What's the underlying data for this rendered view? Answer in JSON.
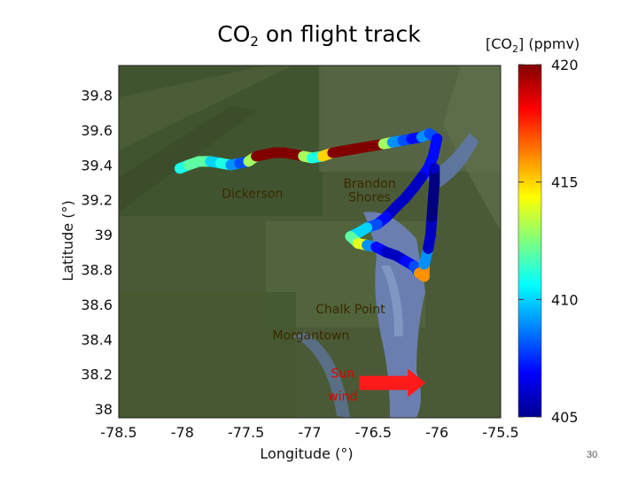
{
  "chart_data": {
    "type": "scatter",
    "title_main": "CO",
    "title_sub": "2",
    "title_rest": " on flight track",
    "xlabel": "Longitude (°)",
    "ylabel": "Latitude (°)",
    "xlim": [
      -78.5,
      -75.5
    ],
    "ylim": [
      37.95,
      39.97
    ],
    "xticks": [
      "-78.5",
      "-78",
      "-77.5",
      "-77",
      "-76.5",
      "-76",
      "-75.5"
    ],
    "yticks": [
      "39.8",
      "39.6",
      "39.4",
      "39.2",
      "39",
      "38.8",
      "38.6",
      "38.4",
      "38.2",
      "38"
    ],
    "colorbar": {
      "label_pre": "[CO",
      "label_sub": "2",
      "label_post": "]  (ppmv)",
      "range": [
        405,
        420
      ],
      "ticks": [
        "420",
        "415",
        "410",
        "405"
      ]
    },
    "annotations": [
      {
        "label": "Dickerson",
        "lon": -77.45,
        "lat": 39.21,
        "color": "#3a2a00"
      },
      {
        "label": "Brandon",
        "lon": -76.53,
        "lat": 39.27,
        "color": "#3a2a00"
      },
      {
        "label": "Shores",
        "lon": -76.53,
        "lat": 39.19,
        "color": "#3a2a00"
      },
      {
        "label": "Chalk Point",
        "lon": -76.68,
        "lat": 38.55,
        "color": "#3a2a00"
      },
      {
        "label": "Morgantown",
        "lon": -76.99,
        "lat": 38.4,
        "color": "#3a2a00"
      },
      {
        "label": "Sun",
        "lon": -76.74,
        "lat": 38.18,
        "color": "#e00000"
      },
      {
        "label": "wind",
        "lon": -76.74,
        "lat": 38.05,
        "color": "#e00000"
      }
    ],
    "wind_arrow": {
      "lon_start": -76.61,
      "lon_end": -76.09,
      "lat": 38.15,
      "color": "#ff1a1a"
    },
    "series": [
      {
        "points": [
          [
            -78.02,
            39.38,
            411
          ],
          [
            -77.95,
            39.4,
            412
          ],
          [
            -77.87,
            39.42,
            412
          ],
          [
            -77.78,
            39.42,
            410
          ],
          [
            -77.7,
            39.41,
            411
          ],
          [
            -77.62,
            39.4,
            409
          ],
          [
            -77.55,
            39.41,
            408
          ],
          [
            -77.48,
            39.42,
            413
          ],
          [
            -77.42,
            39.45,
            420
          ],
          [
            -77.35,
            39.46,
            420
          ],
          [
            -77.28,
            39.47,
            420
          ],
          [
            -77.2,
            39.47,
            420
          ],
          [
            -77.12,
            39.46,
            420
          ],
          [
            -77.05,
            39.45,
            413
          ],
          [
            -76.98,
            39.44,
            411
          ],
          [
            -76.9,
            39.45,
            415
          ],
          [
            -76.82,
            39.47,
            420
          ],
          [
            -76.74,
            39.48,
            420
          ],
          [
            -76.66,
            39.49,
            420
          ],
          [
            -76.58,
            39.5,
            420
          ],
          [
            -76.5,
            39.51,
            420
          ],
          [
            -76.42,
            39.52,
            413
          ],
          [
            -76.35,
            39.53,
            409
          ],
          [
            -76.27,
            39.54,
            408
          ],
          [
            -76.2,
            39.55,
            407
          ],
          [
            -76.12,
            39.56,
            409
          ],
          [
            -76.06,
            39.58,
            408
          ],
          [
            -76.0,
            39.55,
            407
          ],
          [
            -76.03,
            39.45,
            407
          ],
          [
            -76.07,
            39.38,
            407
          ],
          [
            -76.12,
            39.33,
            406
          ],
          [
            -76.18,
            39.27,
            406
          ],
          [
            -76.25,
            39.21,
            406
          ],
          [
            -76.32,
            39.16,
            406
          ],
          [
            -76.4,
            39.1,
            407
          ],
          [
            -76.47,
            39.06,
            408
          ],
          [
            -76.55,
            39.04,
            410
          ],
          [
            -76.62,
            39.01,
            410
          ],
          [
            -76.68,
            38.99,
            412
          ],
          [
            -76.62,
            38.95,
            414
          ],
          [
            -76.55,
            38.94,
            409
          ],
          [
            -76.48,
            38.93,
            407
          ],
          [
            -76.4,
            38.9,
            406
          ],
          [
            -76.32,
            38.88,
            406
          ],
          [
            -76.25,
            38.85,
            407
          ],
          [
            -76.18,
            38.82,
            408
          ],
          [
            -76.14,
            38.78,
            416
          ],
          [
            -76.1,
            38.76,
            416
          ],
          [
            -76.1,
            38.83,
            409
          ],
          [
            -76.07,
            38.92,
            406
          ],
          [
            -76.05,
            39.0,
            406
          ],
          [
            -76.04,
            39.1,
            405
          ],
          [
            -76.03,
            39.2,
            405
          ],
          [
            -76.02,
            39.3,
            405
          ],
          [
            -76.02,
            39.38,
            406
          ]
        ]
      }
    ]
  }
}
